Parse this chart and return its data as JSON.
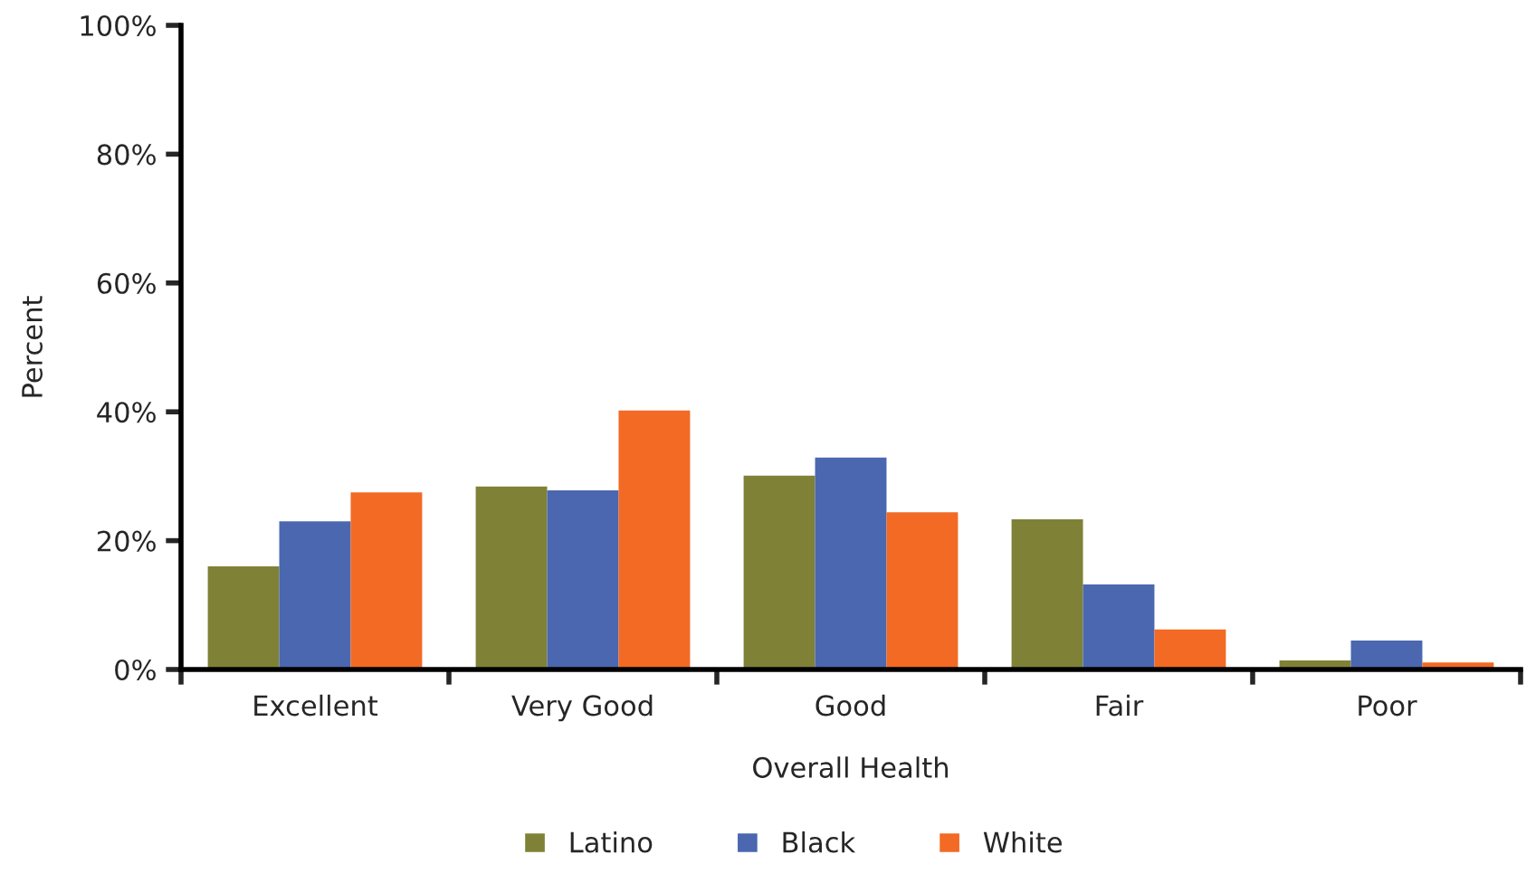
{
  "chart_data": {
    "type": "bar",
    "xlabel": "Overall Health",
    "ylabel": "Percent",
    "categories": [
      "Excellent",
      "Very Good",
      "Good",
      "Fair",
      "Poor"
    ],
    "series": [
      {
        "name": "Latino",
        "color": "#7f8236",
        "values": [
          16,
          28.4,
          30.1,
          23.3,
          1.4
        ]
      },
      {
        "name": "Black",
        "color": "#4a67b0",
        "values": [
          23,
          27.8,
          32.9,
          13.2,
          4.5
        ]
      },
      {
        "name": "White",
        "color": "#f26a24",
        "values": [
          27.5,
          40.2,
          24.4,
          6.2,
          1.1
        ]
      }
    ],
    "ylim": [
      0,
      100
    ],
    "yticks": [
      {
        "value": 0,
        "label": "0%"
      },
      {
        "value": 20,
        "label": "20%"
      },
      {
        "value": 40,
        "label": "40%"
      },
      {
        "value": 60,
        "label": "60%"
      },
      {
        "value": 80,
        "label": "80%"
      },
      {
        "value": 100,
        "label": "100%"
      }
    ],
    "grid": false,
    "legend": "bottom"
  }
}
